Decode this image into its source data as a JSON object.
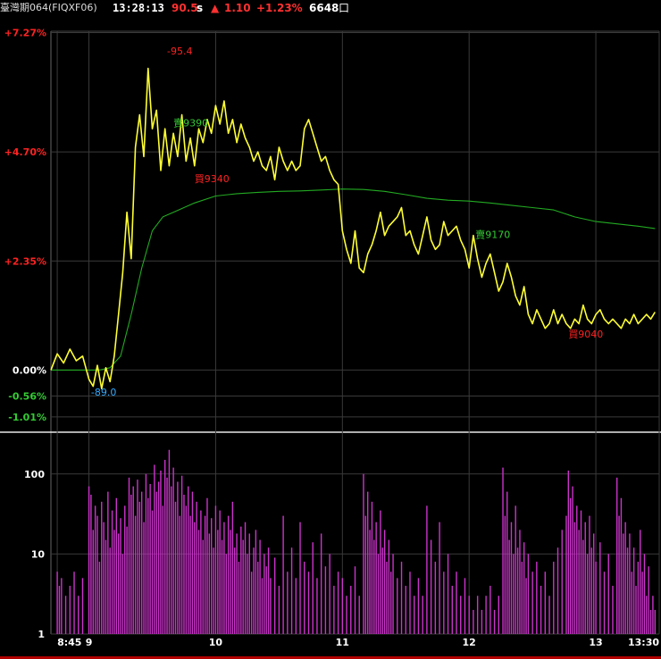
{
  "header": {
    "instrument": "臺灣期064(FIQXF06)",
    "time": "13:28:13",
    "price": "90.5",
    "price_unit": "s",
    "arrow": "▲",
    "change": "1.10",
    "change_pct": "+1.23%",
    "volume": "6648",
    "volume_unit": "口"
  },
  "colors": {
    "background": "#000000",
    "price_line": "#ffff33",
    "avg_line": "#22aa22",
    "volume_bar": "#cc33cc",
    "up_label": "#ff2222",
    "down_label": "#33cc33",
    "low_label": "#33aaff",
    "grid": "#3a3a3a",
    "bottom_bar": "#b00000"
  },
  "chart_data": [
    {
      "type": "line",
      "title": "",
      "x_tick_labels": [
        "8:45",
        "9",
        "10",
        "11",
        "12",
        "13",
        "13:30"
      ],
      "x_ticks_minutes": [
        525,
        540,
        600,
        660,
        720,
        780,
        810
      ],
      "xlim_minutes": [
        522,
        810
      ],
      "ylim_pct": [
        -1.3,
        7.3
      ],
      "y_tick_labels": [
        {
          "pct": 7.27,
          "label": "+7.27%",
          "tone": "up"
        },
        {
          "pct": 4.7,
          "label": "+4.70%",
          "tone": "up"
        },
        {
          "pct": 2.35,
          "label": "+2.35%",
          "tone": "up"
        },
        {
          "pct": 0.0,
          "label": "0.00%",
          "tone": "flat"
        },
        {
          "pct": -0.56,
          "label": "-0.56%",
          "tone": "down"
        },
        {
          "pct": -1.01,
          "label": "-1.01%",
          "tone": "down"
        }
      ],
      "grid": true,
      "series": [
        {
          "role": "price",
          "x_minutes": [
            522,
            525,
            528,
            531,
            534,
            537,
            540,
            542,
            544,
            546,
            548,
            550,
            552,
            554,
            556,
            558,
            560,
            562,
            564,
            566,
            568,
            570,
            572,
            574,
            576,
            578,
            580,
            582,
            584,
            586,
            588,
            590,
            592,
            594,
            596,
            598,
            600,
            602,
            604,
            606,
            608,
            610,
            612,
            614,
            616,
            618,
            620,
            622,
            624,
            626,
            628,
            630,
            632,
            634,
            636,
            638,
            640,
            642,
            644,
            646,
            648,
            650,
            652,
            654,
            656,
            658,
            660,
            662,
            664,
            666,
            668,
            670,
            672,
            674,
            676,
            678,
            680,
            682,
            684,
            686,
            688,
            690,
            692,
            694,
            696,
            698,
            700,
            702,
            704,
            706,
            708,
            710,
            712,
            714,
            716,
            718,
            720,
            722,
            724,
            726,
            728,
            730,
            732,
            734,
            736,
            738,
            740,
            742,
            744,
            746,
            748,
            750,
            752,
            754,
            756,
            758,
            760,
            762,
            764,
            766,
            768,
            770,
            772,
            774,
            776,
            778,
            780,
            782,
            784,
            786,
            788,
            790,
            792,
            794,
            796,
            798,
            800,
            802,
            804,
            806,
            808
          ],
          "y_pct": [
            0.0,
            0.35,
            0.15,
            0.45,
            0.2,
            0.3,
            -0.2,
            -0.35,
            0.1,
            -0.4,
            0.05,
            -0.25,
            0.3,
            1.2,
            2.1,
            3.4,
            2.4,
            4.8,
            5.5,
            4.6,
            6.5,
            5.2,
            5.6,
            4.3,
            5.2,
            4.4,
            5.1,
            4.6,
            5.5,
            4.5,
            5.0,
            4.4,
            5.2,
            4.9,
            5.4,
            5.1,
            5.7,
            5.3,
            5.8,
            5.1,
            5.4,
            4.9,
            5.3,
            5.0,
            4.8,
            4.5,
            4.7,
            4.4,
            4.3,
            4.6,
            4.1,
            4.8,
            4.5,
            4.3,
            4.5,
            4.3,
            4.4,
            5.2,
            5.4,
            5.1,
            4.8,
            4.5,
            4.6,
            4.3,
            4.1,
            4.0,
            3.0,
            2.6,
            2.3,
            3.0,
            2.2,
            2.1,
            2.5,
            2.7,
            3.0,
            3.4,
            2.9,
            3.1,
            3.2,
            3.3,
            3.5,
            2.9,
            3.0,
            2.7,
            2.5,
            2.9,
            3.3,
            2.8,
            2.6,
            2.7,
            3.2,
            2.9,
            3.0,
            3.1,
            2.8,
            2.6,
            2.2,
            2.9,
            2.4,
            2.0,
            2.3,
            2.5,
            2.1,
            1.7,
            1.9,
            2.3,
            2.0,
            1.6,
            1.4,
            1.8,
            1.2,
            1.0,
            1.3,
            1.1,
            0.9,
            1.0,
            1.3,
            1.0,
            1.2,
            1.0,
            0.9,
            1.1,
            1.0,
            1.4,
            1.1,
            1.0,
            1.2,
            1.3,
            1.1,
            1.0,
            1.1,
            1.0,
            0.9,
            1.1,
            1.0,
            1.2,
            1.0,
            1.1,
            1.2,
            1.1,
            1.25
          ]
        },
        {
          "role": "average",
          "x_minutes": [
            522,
            525,
            530,
            535,
            540,
            545,
            550,
            555,
            560,
            565,
            570,
            575,
            580,
            590,
            600,
            610,
            620,
            630,
            640,
            650,
            660,
            670,
            680,
            690,
            700,
            710,
            720,
            730,
            740,
            750,
            760,
            770,
            780,
            790,
            800,
            808
          ],
          "y_pct": [
            0.0,
            0.0,
            0.0,
            0.0,
            0.0,
            0.0,
            0.05,
            0.3,
            1.2,
            2.2,
            3.0,
            3.3,
            3.4,
            3.6,
            3.75,
            3.8,
            3.83,
            3.85,
            3.86,
            3.88,
            3.9,
            3.89,
            3.85,
            3.78,
            3.7,
            3.66,
            3.64,
            3.6,
            3.55,
            3.5,
            3.45,
            3.3,
            3.2,
            3.15,
            3.1,
            3.05
          ]
        }
      ],
      "annotations": [
        {
          "text": "-95.4",
          "x_minutes": 577,
          "y_pct": 6.8,
          "tone": "up"
        },
        {
          "text": "賣9390",
          "x_minutes": 580,
          "y_pct": 5.25,
          "tone": "down"
        },
        {
          "text": "買9340",
          "x_minutes": 590,
          "y_pct": 4.05,
          "tone": "up"
        },
        {
          "text": "賣9170",
          "x_minutes": 723,
          "y_pct": 2.85,
          "tone": "down"
        },
        {
          "text": "買9040",
          "x_minutes": 767,
          "y_pct": 0.7,
          "tone": "up"
        },
        {
          "text": "-89.0",
          "x_minutes": 541,
          "y_pct": -0.55,
          "tone": "low"
        }
      ]
    },
    {
      "type": "bar",
      "title": "",
      "yscale": "log",
      "ylim": [
        1,
        300
      ],
      "y_tick_labels": [
        "1",
        "10",
        "100"
      ],
      "y_tick_values": [
        1,
        10,
        100
      ],
      "bars": [
        [
          525,
          6
        ],
        [
          526,
          4
        ],
        [
          527,
          5
        ],
        [
          529,
          3
        ],
        [
          531,
          4
        ],
        [
          533,
          6
        ],
        [
          535,
          3
        ],
        [
          537,
          5
        ],
        [
          540,
          70
        ],
        [
          541,
          55
        ],
        [
          542,
          20
        ],
        [
          543,
          40
        ],
        [
          544,
          30
        ],
        [
          545,
          8
        ],
        [
          546,
          45
        ],
        [
          547,
          25
        ],
        [
          548,
          15
        ],
        [
          549,
          60
        ],
        [
          550,
          12
        ],
        [
          551,
          35
        ],
        [
          552,
          20
        ],
        [
          553,
          50
        ],
        [
          554,
          18
        ],
        [
          555,
          28
        ],
        [
          556,
          10
        ],
        [
          557,
          40
        ],
        [
          558,
          22
        ],
        [
          559,
          90
        ],
        [
          560,
          55
        ],
        [
          561,
          70
        ],
        [
          562,
          30
        ],
        [
          563,
          85
        ],
        [
          564,
          45
        ],
        [
          565,
          60
        ],
        [
          566,
          25
        ],
        [
          567,
          100
        ],
        [
          568,
          50
        ],
        [
          569,
          75
        ],
        [
          570,
          35
        ],
        [
          571,
          130
        ],
        [
          572,
          60
        ],
        [
          573,
          80
        ],
        [
          574,
          110
        ],
        [
          575,
          40
        ],
        [
          576,
          150
        ],
        [
          577,
          90
        ],
        [
          578,
          200
        ],
        [
          579,
          70
        ],
        [
          580,
          120
        ],
        [
          581,
          45
        ],
        [
          582,
          80
        ],
        [
          583,
          30
        ],
        [
          584,
          95
        ],
        [
          585,
          55
        ],
        [
          586,
          40
        ],
        [
          587,
          70
        ],
        [
          588,
          30
        ],
        [
          589,
          60
        ],
        [
          590,
          25
        ],
        [
          591,
          45
        ],
        [
          592,
          20
        ],
        [
          593,
          35
        ],
        [
          594,
          15
        ],
        [
          595,
          30
        ],
        [
          596,
          50
        ],
        [
          597,
          18
        ],
        [
          598,
          28
        ],
        [
          599,
          12
        ],
        [
          600,
          40
        ],
        [
          601,
          20
        ],
        [
          602,
          35
        ],
        [
          603,
          15
        ],
        [
          604,
          25
        ],
        [
          605,
          10
        ],
        [
          606,
          30
        ],
        [
          607,
          20
        ],
        [
          608,
          45
        ],
        [
          609,
          12
        ],
        [
          610,
          18
        ],
        [
          611,
          8
        ],
        [
          612,
          22
        ],
        [
          613,
          15
        ],
        [
          614,
          25
        ],
        [
          615,
          10
        ],
        [
          616,
          18
        ],
        [
          617,
          6
        ],
        [
          618,
          12
        ],
        [
          619,
          20
        ],
        [
          620,
          8
        ],
        [
          621,
          15
        ],
        [
          622,
          5
        ],
        [
          623,
          10
        ],
        [
          624,
          7
        ],
        [
          625,
          12
        ],
        [
          626,
          5
        ],
        [
          628,
          9
        ],
        [
          630,
          4
        ],
        [
          632,
          30
        ],
        [
          634,
          6
        ],
        [
          636,
          12
        ],
        [
          638,
          5
        ],
        [
          640,
          25
        ],
        [
          642,
          8
        ],
        [
          644,
          6
        ],
        [
          646,
          14
        ],
        [
          648,
          5
        ],
        [
          650,
          18
        ],
        [
          652,
          7
        ],
        [
          654,
          10
        ],
        [
          656,
          4
        ],
        [
          658,
          6
        ],
        [
          660,
          5
        ],
        [
          662,
          3
        ],
        [
          664,
          4
        ],
        [
          666,
          7
        ],
        [
          668,
          3
        ],
        [
          670,
          100
        ],
        [
          671,
          30
        ],
        [
          672,
          60
        ],
        [
          673,
          20
        ],
        [
          674,
          45
        ],
        [
          675,
          15
        ],
        [
          676,
          25
        ],
        [
          677,
          10
        ],
        [
          678,
          35
        ],
        [
          679,
          12
        ],
        [
          680,
          20
        ],
        [
          681,
          8
        ],
        [
          682,
          15
        ],
        [
          683,
          6
        ],
        [
          684,
          10
        ],
        [
          686,
          5
        ],
        [
          688,
          8
        ],
        [
          690,
          4
        ],
        [
          692,
          6
        ],
        [
          694,
          3
        ],
        [
          696,
          5
        ],
        [
          698,
          3
        ],
        [
          700,
          40
        ],
        [
          702,
          15
        ],
        [
          704,
          8
        ],
        [
          706,
          25
        ],
        [
          708,
          6
        ],
        [
          710,
          10
        ],
        [
          712,
          4
        ],
        [
          714,
          6
        ],
        [
          716,
          3
        ],
        [
          718,
          5
        ],
        [
          720,
          3
        ],
        [
          722,
          2
        ],
        [
          724,
          3
        ],
        [
          726,
          2
        ],
        [
          728,
          3
        ],
        [
          730,
          4
        ],
        [
          732,
          2
        ],
        [
          734,
          3
        ],
        [
          736,
          120
        ],
        [
          737,
          30
        ],
        [
          738,
          60
        ],
        [
          739,
          15
        ],
        [
          740,
          25
        ],
        [
          741,
          10
        ],
        [
          742,
          40
        ],
        [
          743,
          12
        ],
        [
          744,
          20
        ],
        [
          745,
          8
        ],
        [
          746,
          14
        ],
        [
          747,
          5
        ],
        [
          748,
          10
        ],
        [
          750,
          6
        ],
        [
          752,
          8
        ],
        [
          754,
          4
        ],
        [
          756,
          6
        ],
        [
          758,
          3
        ],
        [
          760,
          8
        ],
        [
          762,
          12
        ],
        [
          764,
          20
        ],
        [
          766,
          30
        ],
        [
          767,
          110
        ],
        [
          768,
          50
        ],
        [
          769,
          70
        ],
        [
          770,
          25
        ],
        [
          771,
          40
        ],
        [
          772,
          20
        ],
        [
          773,
          35
        ],
        [
          774,
          15
        ],
        [
          775,
          25
        ],
        [
          776,
          10
        ],
        [
          777,
          30
        ],
        [
          778,
          12
        ],
        [
          779,
          18
        ],
        [
          780,
          8
        ],
        [
          782,
          14
        ],
        [
          784,
          6
        ],
        [
          786,
          10
        ],
        [
          788,
          4
        ],
        [
          790,
          90
        ],
        [
          791,
          30
        ],
        [
          792,
          50
        ],
        [
          793,
          18
        ],
        [
          794,
          25
        ],
        [
          795,
          12
        ],
        [
          796,
          18
        ],
        [
          797,
          6
        ],
        [
          798,
          12
        ],
        [
          799,
          4
        ],
        [
          800,
          8
        ],
        [
          801,
          20
        ],
        [
          802,
          6
        ],
        [
          803,
          10
        ],
        [
          804,
          3
        ],
        [
          805,
          7
        ],
        [
          806,
          2
        ],
        [
          807,
          3
        ],
        [
          808,
          2
        ]
      ]
    }
  ]
}
